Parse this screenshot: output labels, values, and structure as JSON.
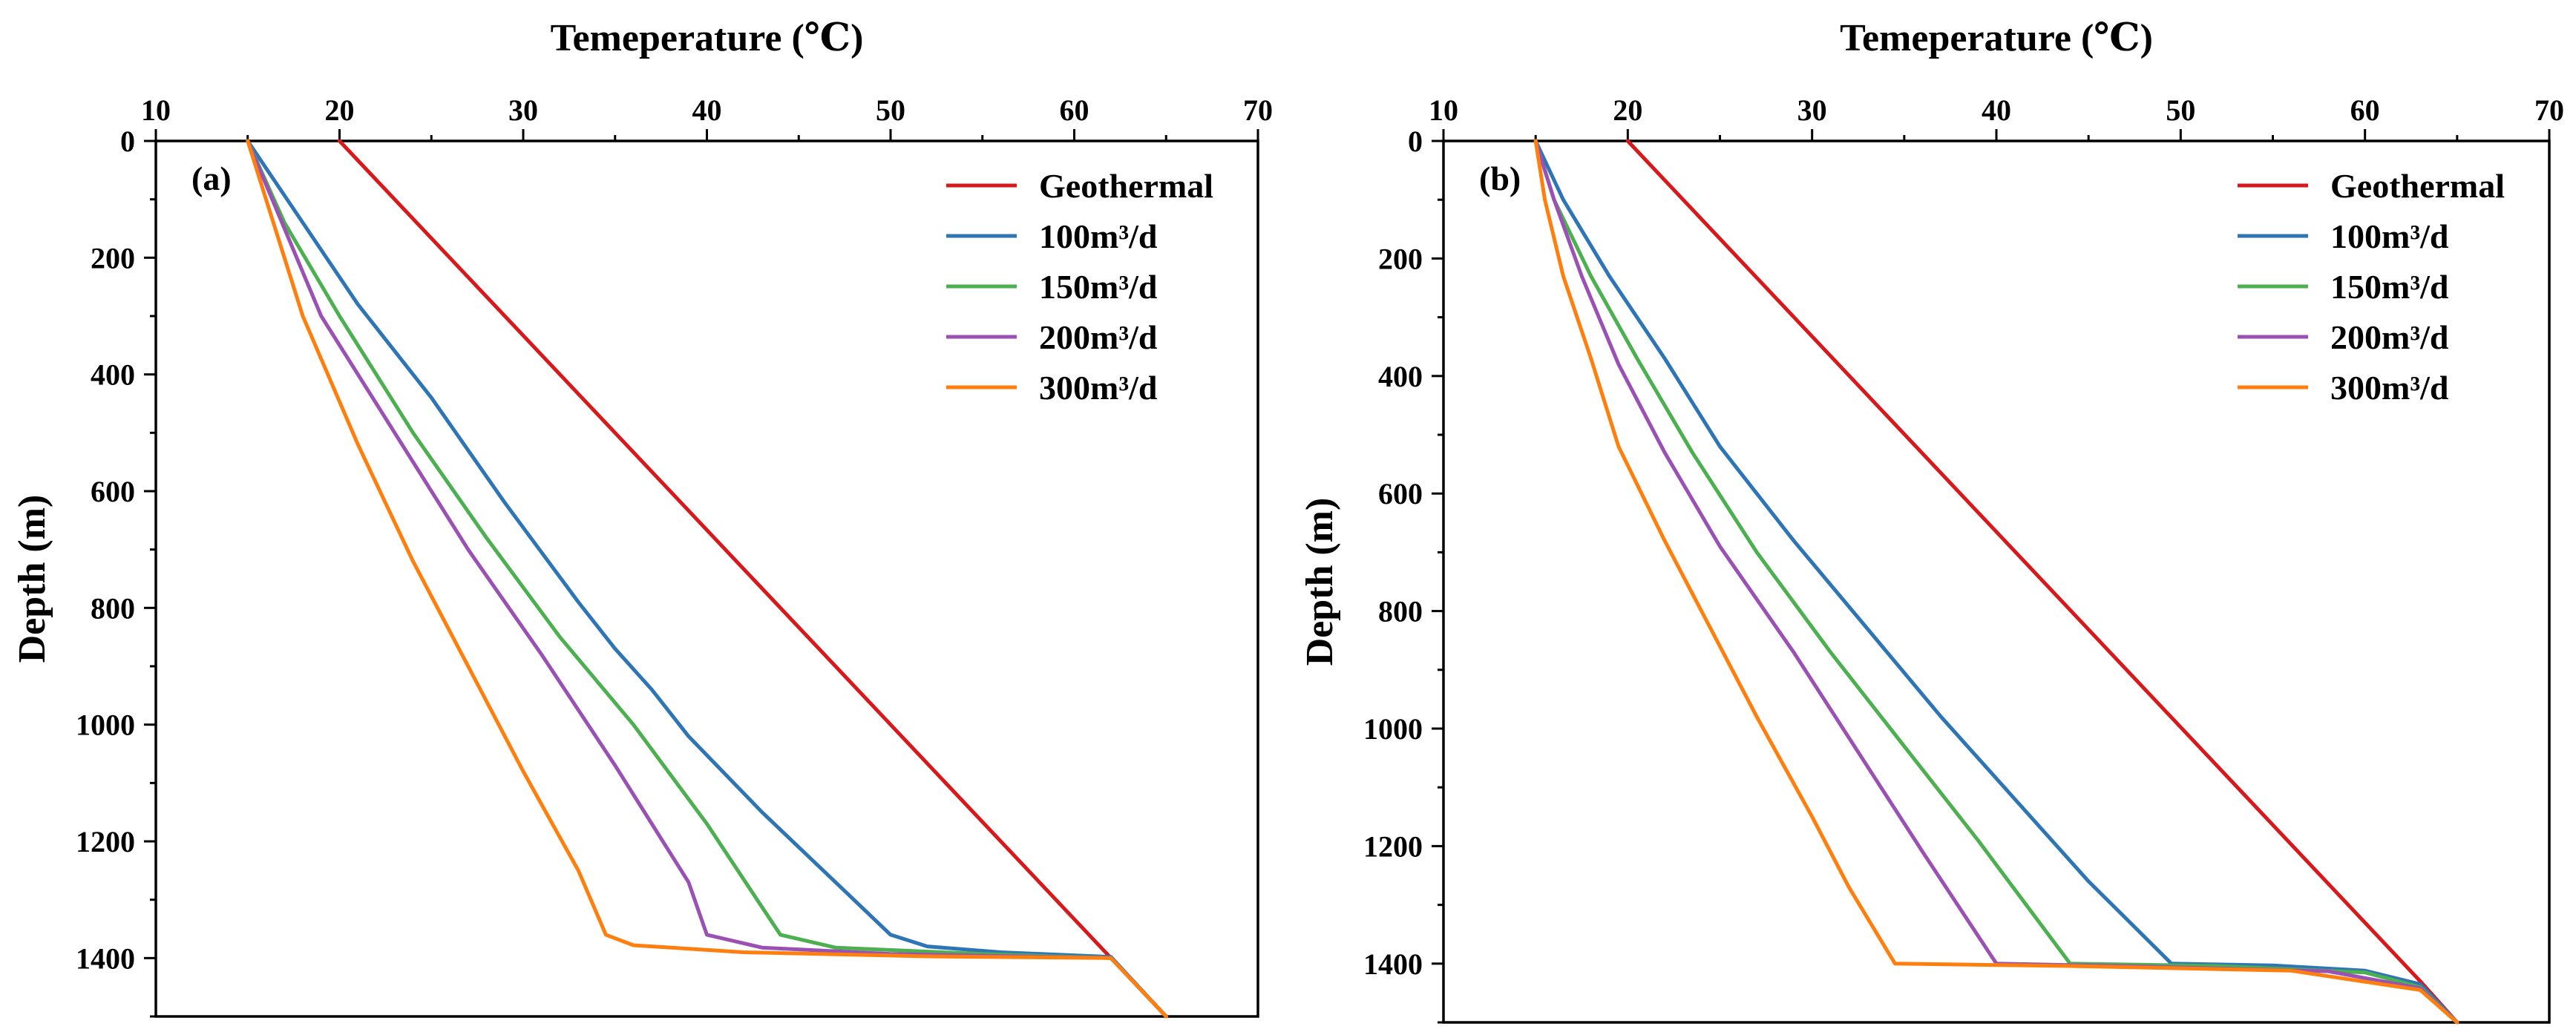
{
  "chart_data": [
    {
      "type": "line",
      "panel_label": "(a)",
      "xlabel_top": "Temeperature (℃)",
      "ylabel": "Depth (m)",
      "xlim": [
        10,
        70
      ],
      "ylim": [
        0,
        1500
      ],
      "y_inverted": true,
      "x_axis_position": "top",
      "x_ticks": [
        "10",
        "20",
        "30",
        "40",
        "50",
        "60",
        "70"
      ],
      "y_ticks": [
        "0",
        "200",
        "400",
        "600",
        "800",
        "1000",
        "1200",
        "1400"
      ],
      "legend_position": "top-right",
      "series": [
        {
          "name": "Geothermal",
          "color": "#d7191c",
          "points": [
            [
              20,
              0
            ],
            [
              62,
              1400
            ],
            [
              65,
              1500
            ]
          ]
        },
        {
          "name": "100m³/d",
          "color": "#2e75b6",
          "points": [
            [
              15,
              0
            ],
            [
              18,
              140
            ],
            [
              21,
              280
            ],
            [
              25,
              440
            ],
            [
              29,
              620
            ],
            [
              33,
              790
            ],
            [
              35,
              870
            ],
            [
              37,
              940
            ],
            [
              39,
              1020
            ],
            [
              43,
              1150
            ],
            [
              47,
              1270
            ],
            [
              50,
              1360
            ],
            [
              52,
              1380
            ],
            [
              56,
              1390
            ],
            [
              62,
              1398
            ],
            [
              65,
              1500
            ]
          ]
        },
        {
          "name": "150m³/d",
          "color": "#4caf50",
          "points": [
            [
              15,
              0
            ],
            [
              17,
              140
            ],
            [
              20,
              300
            ],
            [
              24,
              500
            ],
            [
              28,
              680
            ],
            [
              32,
              850
            ],
            [
              36,
              1000
            ],
            [
              40,
              1170
            ],
            [
              44,
              1360
            ],
            [
              47,
              1382
            ],
            [
              55,
              1393
            ],
            [
              62,
              1400
            ],
            [
              65,
              1500
            ]
          ]
        },
        {
          "name": "200m³/d",
          "color": "#9b51b3",
          "points": [
            [
              15,
              0
            ],
            [
              17,
              150
            ],
            [
              19,
              300
            ],
            [
              23,
              500
            ],
            [
              27,
              700
            ],
            [
              31,
              880
            ],
            [
              35,
              1070
            ],
            [
              39,
              1270
            ],
            [
              40,
              1360
            ],
            [
              43,
              1382
            ],
            [
              50,
              1393
            ],
            [
              62,
              1400
            ],
            [
              65,
              1500
            ]
          ]
        },
        {
          "name": "300m³/d",
          "color": "#ff7f0e",
          "points": [
            [
              15,
              0
            ],
            [
              16,
              100
            ],
            [
              18,
              300
            ],
            [
              21,
              520
            ],
            [
              24,
              720
            ],
            [
              27,
              900
            ],
            [
              30,
              1080
            ],
            [
              33,
              1250
            ],
            [
              34.5,
              1360
            ],
            [
              36,
              1378
            ],
            [
              42,
              1390
            ],
            [
              52,
              1397
            ],
            [
              62,
              1400
            ],
            [
              65,
              1500
            ]
          ]
        }
      ]
    },
    {
      "type": "line",
      "panel_label": "(b)",
      "xlabel_top": "Temeperature (℃)",
      "ylabel": "Depth (m)",
      "xlim": [
        10,
        70
      ],
      "ylim": [
        0,
        1500
      ],
      "y_inverted": true,
      "x_axis_position": "top",
      "x_ticks": [
        "10",
        "20",
        "30",
        "40",
        "50",
        "60",
        "70"
      ],
      "y_ticks": [
        "0",
        "200",
        "400",
        "600",
        "800",
        "1000",
        "1200",
        "1400"
      ],
      "legend_position": "top-right",
      "series": [
        {
          "name": "Geothermal",
          "color": "#d7191c",
          "points": [
            [
              20,
              0
            ],
            [
              63,
              1430
            ],
            [
              65,
              1500
            ]
          ]
        },
        {
          "name": "100m³/d",
          "color": "#2e75b6",
          "points": [
            [
              15,
              0
            ],
            [
              16.5,
              100
            ],
            [
              19,
              230
            ],
            [
              22,
              370
            ],
            [
              25,
              520
            ],
            [
              29,
              680
            ],
            [
              33,
              830
            ],
            [
              37,
              980
            ],
            [
              41,
              1120
            ],
            [
              45,
              1260
            ],
            [
              49.5,
              1400
            ],
            [
              55,
              1403
            ],
            [
              60,
              1412
            ],
            [
              63,
              1435
            ],
            [
              65,
              1500
            ]
          ]
        },
        {
          "name": "150m³/d",
          "color": "#4caf50",
          "points": [
            [
              15,
              0
            ],
            [
              16,
              100
            ],
            [
              18,
              230
            ],
            [
              20.5,
              370
            ],
            [
              23.5,
              530
            ],
            [
              27,
              700
            ],
            [
              31,
              870
            ],
            [
              35,
              1030
            ],
            [
              39,
              1190
            ],
            [
              44,
              1400
            ],
            [
              52,
              1404
            ],
            [
              60,
              1415
            ],
            [
              63,
              1440
            ],
            [
              65,
              1500
            ]
          ]
        },
        {
          "name": "200m³/d",
          "color": "#9b51b3",
          "points": [
            [
              15,
              0
            ],
            [
              16,
              100
            ],
            [
              17.5,
              230
            ],
            [
              19.5,
              380
            ],
            [
              22,
              530
            ],
            [
              25,
              690
            ],
            [
              29,
              870
            ],
            [
              32.5,
              1040
            ],
            [
              36,
              1210
            ],
            [
              40,
              1400
            ],
            [
              48,
              1405
            ],
            [
              58,
              1413
            ],
            [
              63,
              1442
            ],
            [
              65,
              1500
            ]
          ]
        },
        {
          "name": "300m³/d",
          "color": "#ff7f0e",
          "points": [
            [
              15,
              0
            ],
            [
              15.5,
              100
            ],
            [
              16.5,
              230
            ],
            [
              18,
              370
            ],
            [
              19.5,
              520
            ],
            [
              22,
              680
            ],
            [
              24.5,
              830
            ],
            [
              27,
              980
            ],
            [
              30,
              1150
            ],
            [
              32,
              1270
            ],
            [
              34.5,
              1400
            ],
            [
              44,
              1404
            ],
            [
              56,
              1412
            ],
            [
              63,
              1445
            ],
            [
              65,
              1500
            ]
          ]
        }
      ]
    }
  ]
}
